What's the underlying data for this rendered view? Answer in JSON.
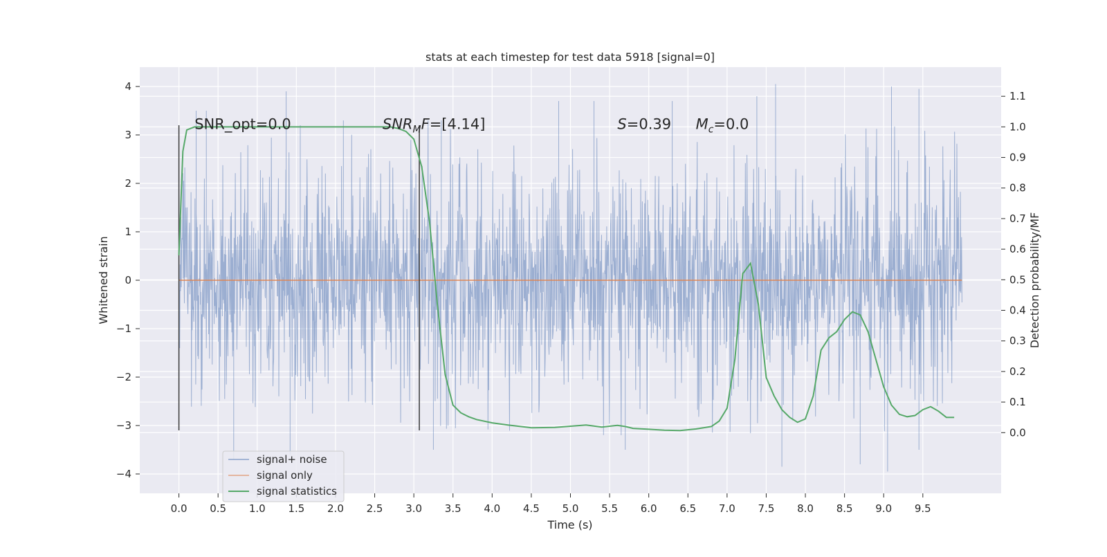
{
  "chart_data": {
    "type": "line",
    "title": "stats at each timestep for test data 5918 [signal=0]",
    "xlabel": "Time (s)",
    "ylabel": "Whitened strain",
    "ylabel_right": "Detection probability/MF",
    "xlim": [
      -0.5,
      10.5
    ],
    "ylim": [
      -4.4,
      4.4
    ],
    "ylim_right": [
      -0.1985,
      1.1954
    ],
    "x_ticks": [
      0.0,
      0.5,
      1.0,
      1.5,
      2.0,
      2.5,
      3.0,
      3.5,
      4.0,
      4.5,
      5.0,
      5.5,
      6.0,
      6.5,
      7.0,
      7.5,
      8.0,
      8.5,
      9.0,
      9.5
    ],
    "x_tick_labels": [
      "0.0",
      "0.5",
      "1.0",
      "1.5",
      "2.0",
      "2.5",
      "3.0",
      "3.5",
      "4.0",
      "4.5",
      "5.0",
      "5.5",
      "6.0",
      "6.5",
      "7.0",
      "7.5",
      "8.0",
      "8.5",
      "9.0",
      "9.5"
    ],
    "y_ticks": [
      4,
      3,
      2,
      1,
      0,
      -1,
      -2,
      -3,
      -4
    ],
    "y_tick_labels": [
      "4",
      "3",
      "2",
      "1",
      "0",
      "−1",
      "−2",
      "−3",
      "−4"
    ],
    "y_ticks_right": [
      1.1,
      1.0,
      0.9,
      0.8,
      0.7,
      0.6,
      0.5,
      0.4,
      0.3,
      0.2,
      0.1,
      0.0
    ],
    "y_tick_labels_right": [
      "1.1",
      "1.0",
      "0.9",
      "0.8",
      "0.7",
      "0.6",
      "0.5",
      "0.4",
      "0.3",
      "0.2",
      "0.1",
      "0.0"
    ],
    "grid": true,
    "legend_position": "lower-left",
    "annotations": [
      {
        "text": "SNR_opt=0.0",
        "x": 0.2,
        "y": 3.12
      },
      {
        "text": "SNR_MF=[4.14]",
        "x": 2.6,
        "y": 3.12
      },
      {
        "text": "S=0.39",
        "x": 5.6,
        "y": 3.12
      },
      {
        "text": "M_c=0.0",
        "x": 6.6,
        "y": 3.12
      }
    ],
    "vertical_markers": [
      {
        "x": 0.0,
        "y_range": [
          -3.1,
          3.2
        ]
      },
      {
        "x": 3.07,
        "y_range": [
          -3.1,
          3.2
        ]
      }
    ],
    "series": [
      {
        "name": "signal+ noise",
        "color": "#4c72b0",
        "alpha": 0.5,
        "axis": "left",
        "style": "dense noise",
        "x_range": [
          0.0,
          10.0
        ],
        "band_main": [
          -1.3,
          1.35
        ],
        "band_spread": [
          -2.0,
          2.0
        ],
        "envelope_peaks": [
          {
            "x": 0.22,
            "y": 3.5
          },
          {
            "x": 0.35,
            "y": 3.5
          },
          {
            "x": 1.37,
            "y": 3.9
          },
          {
            "x": 1.55,
            "y": 3.2
          },
          {
            "x": 2.1,
            "y": 3.3
          },
          {
            "x": 3.35,
            "y": 3.3
          },
          {
            "x": 4.85,
            "y": 3.7
          },
          {
            "x": 5.3,
            "y": 3.7
          },
          {
            "x": 6.3,
            "y": 3.7
          },
          {
            "x": 7.38,
            "y": 3.8
          },
          {
            "x": 7.62,
            "y": 4.05
          },
          {
            "x": 9.1,
            "y": 4.0
          },
          {
            "x": 9.45,
            "y": 3.95
          },
          {
            "x": 0.7,
            "y": -3.7
          },
          {
            "x": 1.42,
            "y": -3.6
          },
          {
            "x": 3.07,
            "y": -3.1
          },
          {
            "x": 3.25,
            "y": -3.5
          },
          {
            "x": 5.7,
            "y": -3.5
          },
          {
            "x": 7.7,
            "y": -3.85
          },
          {
            "x": 8.7,
            "y": -3.8
          },
          {
            "x": 9.05,
            "y": -3.95
          },
          {
            "x": 9.45,
            "y": -3.5
          }
        ]
      },
      {
        "name": "signal only",
        "color": "#dd8452",
        "axis": "left",
        "x": [
          0.0,
          10.0
        ],
        "y": [
          0.0,
          0.0
        ]
      },
      {
        "name": "signal statistics",
        "color": "#55a868",
        "axis": "right",
        "x": [
          0.0,
          0.05,
          0.1,
          0.15,
          0.2,
          0.3,
          0.5,
          1.0,
          1.5,
          2.0,
          2.5,
          2.7,
          2.8,
          2.9,
          3.0,
          3.1,
          3.2,
          3.3,
          3.4,
          3.5,
          3.6,
          3.7,
          3.8,
          4.0,
          4.2,
          4.5,
          4.8,
          5.0,
          5.2,
          5.4,
          5.6,
          5.7,
          5.8,
          6.0,
          6.2,
          6.4,
          6.6,
          6.8,
          6.9,
          7.0,
          7.1,
          7.2,
          7.3,
          7.4,
          7.5,
          7.6,
          7.7,
          7.8,
          7.9,
          8.0,
          8.1,
          8.2,
          8.3,
          8.4,
          8.5,
          8.6,
          8.7,
          8.8,
          8.9,
          9.0,
          9.1,
          9.2,
          9.3,
          9.4,
          9.5,
          9.6,
          9.7,
          9.8,
          9.9
        ],
        "y": [
          0.58,
          0.92,
          0.99,
          0.995,
          1.0,
          1.0,
          1.0,
          1.0,
          1.0,
          1.0,
          1.0,
          1.0,
          0.995,
          0.985,
          0.96,
          0.87,
          0.69,
          0.42,
          0.19,
          0.09,
          0.065,
          0.052,
          0.043,
          0.032,
          0.025,
          0.016,
          0.017,
          0.021,
          0.025,
          0.018,
          0.024,
          0.02,
          0.014,
          0.011,
          0.008,
          0.007,
          0.012,
          0.02,
          0.038,
          0.08,
          0.24,
          0.52,
          0.554,
          0.42,
          0.18,
          0.12,
          0.075,
          0.05,
          0.034,
          0.045,
          0.12,
          0.27,
          0.31,
          0.33,
          0.37,
          0.395,
          0.385,
          0.33,
          0.24,
          0.15,
          0.09,
          0.06,
          0.052,
          0.056,
          0.075,
          0.085,
          0.07,
          0.05,
          0.05
        ]
      }
    ]
  }
}
